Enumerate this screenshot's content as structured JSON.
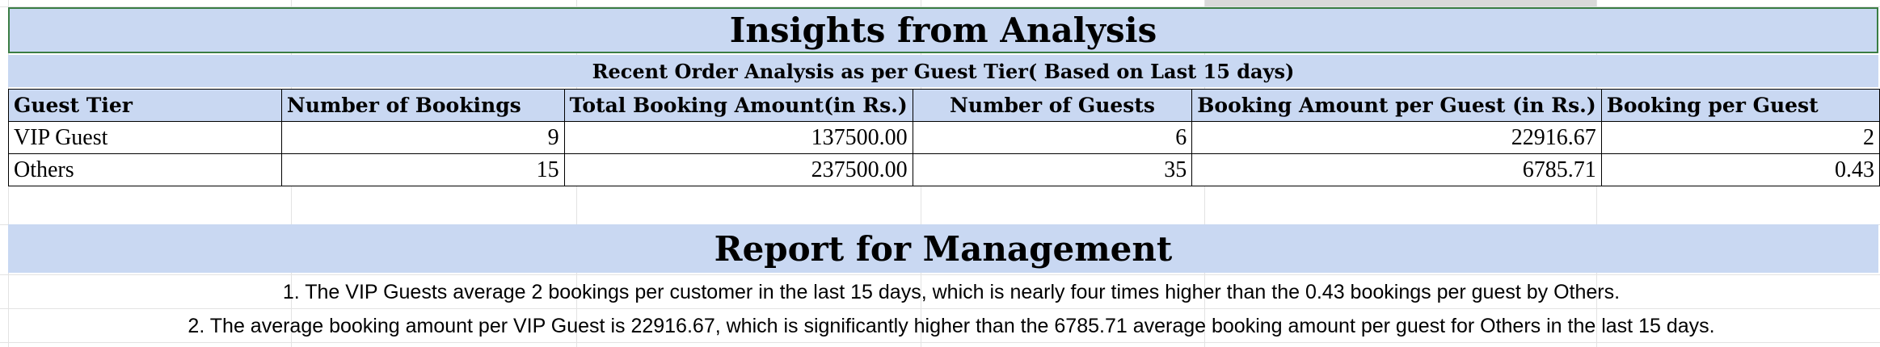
{
  "title": "Insights from Analysis",
  "subtitle": "Recent Order Analysis as per Guest Tier( Based on Last 15 days)",
  "table": {
    "headers": [
      "Guest Tier",
      "Number of Bookings",
      "Total Booking Amount(in Rs.)",
      "Number of Guests",
      "Booking Amount per Guest (in Rs.)",
      "Booking per Guest"
    ],
    "rows": [
      [
        "VIP Guest",
        "9",
        "137500.00",
        "6",
        "22916.67",
        "2"
      ],
      [
        "Others",
        "15",
        "237500.00",
        "35",
        "6785.71",
        "0.43"
      ]
    ]
  },
  "report": {
    "title": "Report for Management",
    "points": [
      "1.  The VIP Guests average 2 bookings per customer in the last 15 days, which is nearly four times higher than the 0.43 bookings per guest by Others.",
      "2. The average booking amount per VIP Guest is 22916.67, which is significantly higher than the 6785.71 average booking amount per guest for Others in the last 15 days."
    ]
  },
  "colors": {
    "band": "#c9d8f2",
    "selection_border": "#3a7d44",
    "grid": "#e3e3e3"
  }
}
